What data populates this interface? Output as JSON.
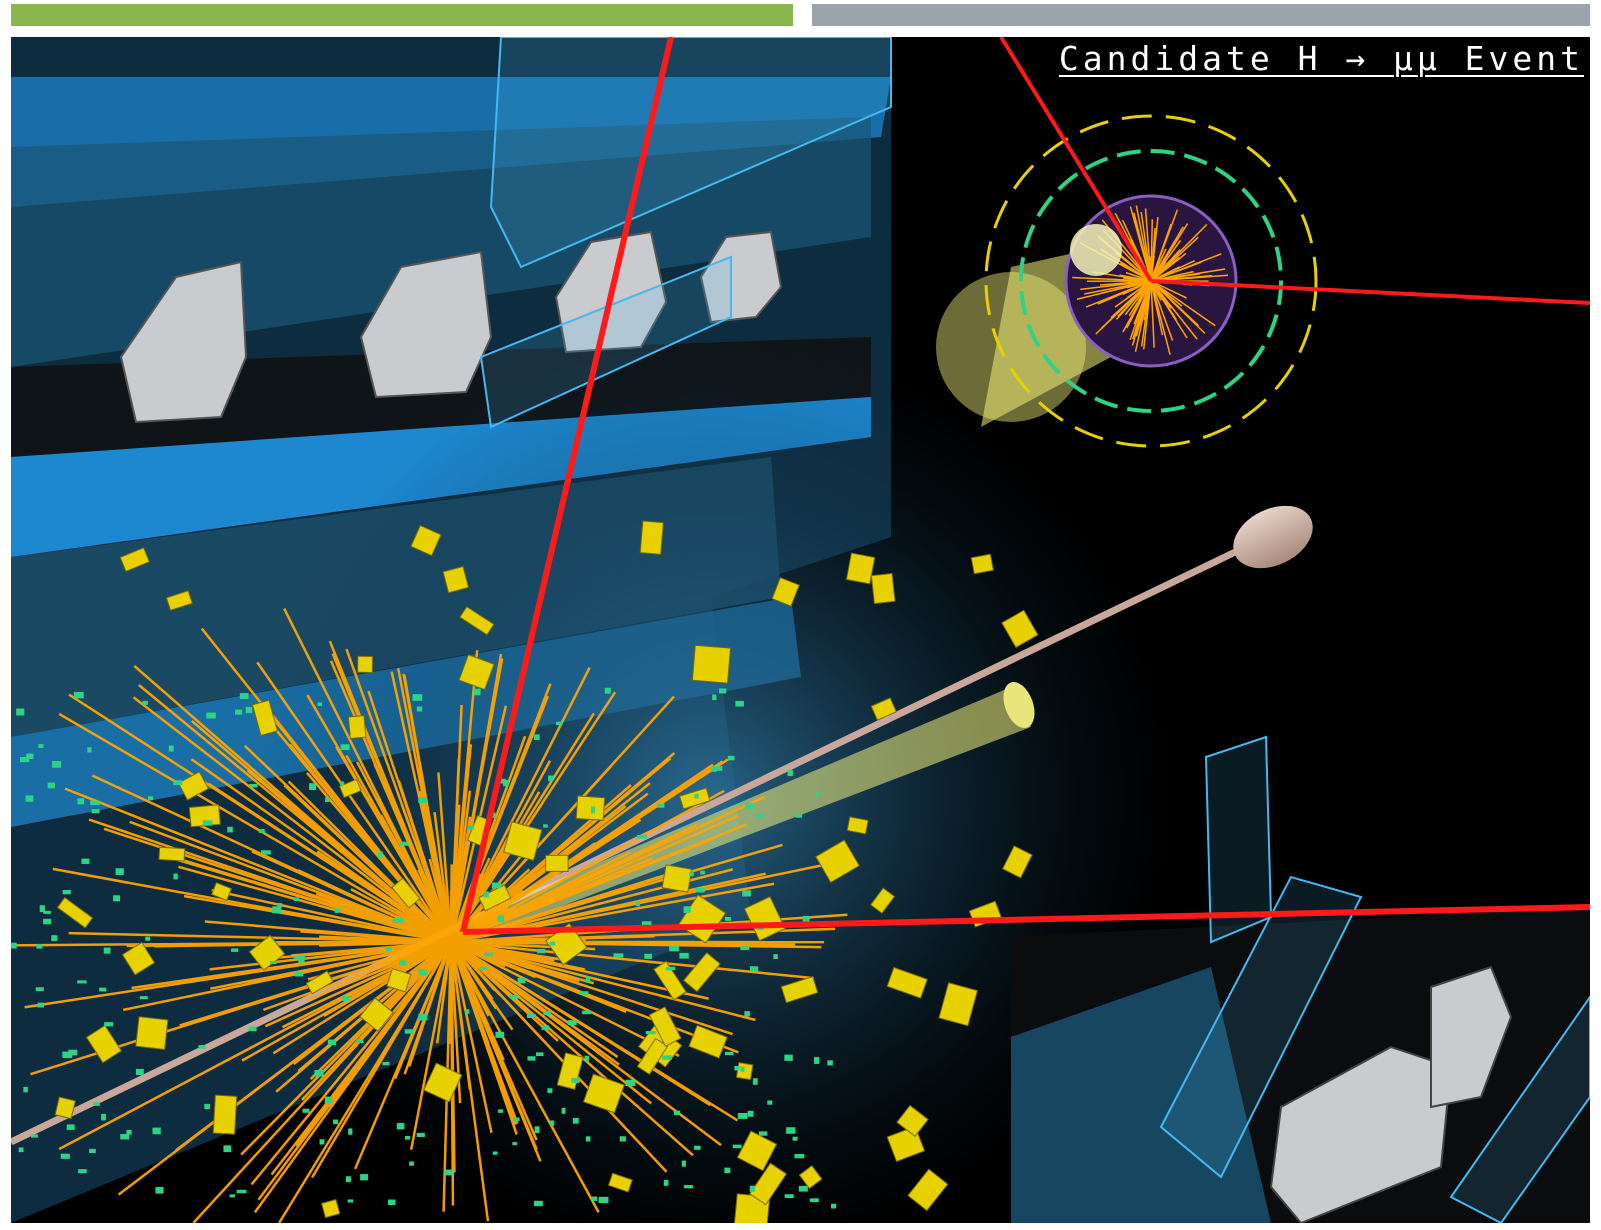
{
  "header": {
    "left_bar_color": "#8bb64e",
    "right_bar_color": "#9ba3ad"
  },
  "event_display": {
    "title": "Candidate H → μμ Event",
    "background": "#000000",
    "colors": {
      "muon": "#ff1a1a",
      "tracks": "#ffa500",
      "calorimeter_cells": "#e7d100",
      "hits": "#2ed483",
      "detector_chambers": "#1e8fd6",
      "detector_frame": "#c9cbce",
      "beam_pipe": "#c9a79a",
      "jet_cone": "#f2f07a"
    },
    "icons": [
      "muon-track",
      "charged-track",
      "calorimeter-cell",
      "jet-cone",
      "beam-pipe",
      "muon-chamber",
      "transverse-view"
    ]
  }
}
